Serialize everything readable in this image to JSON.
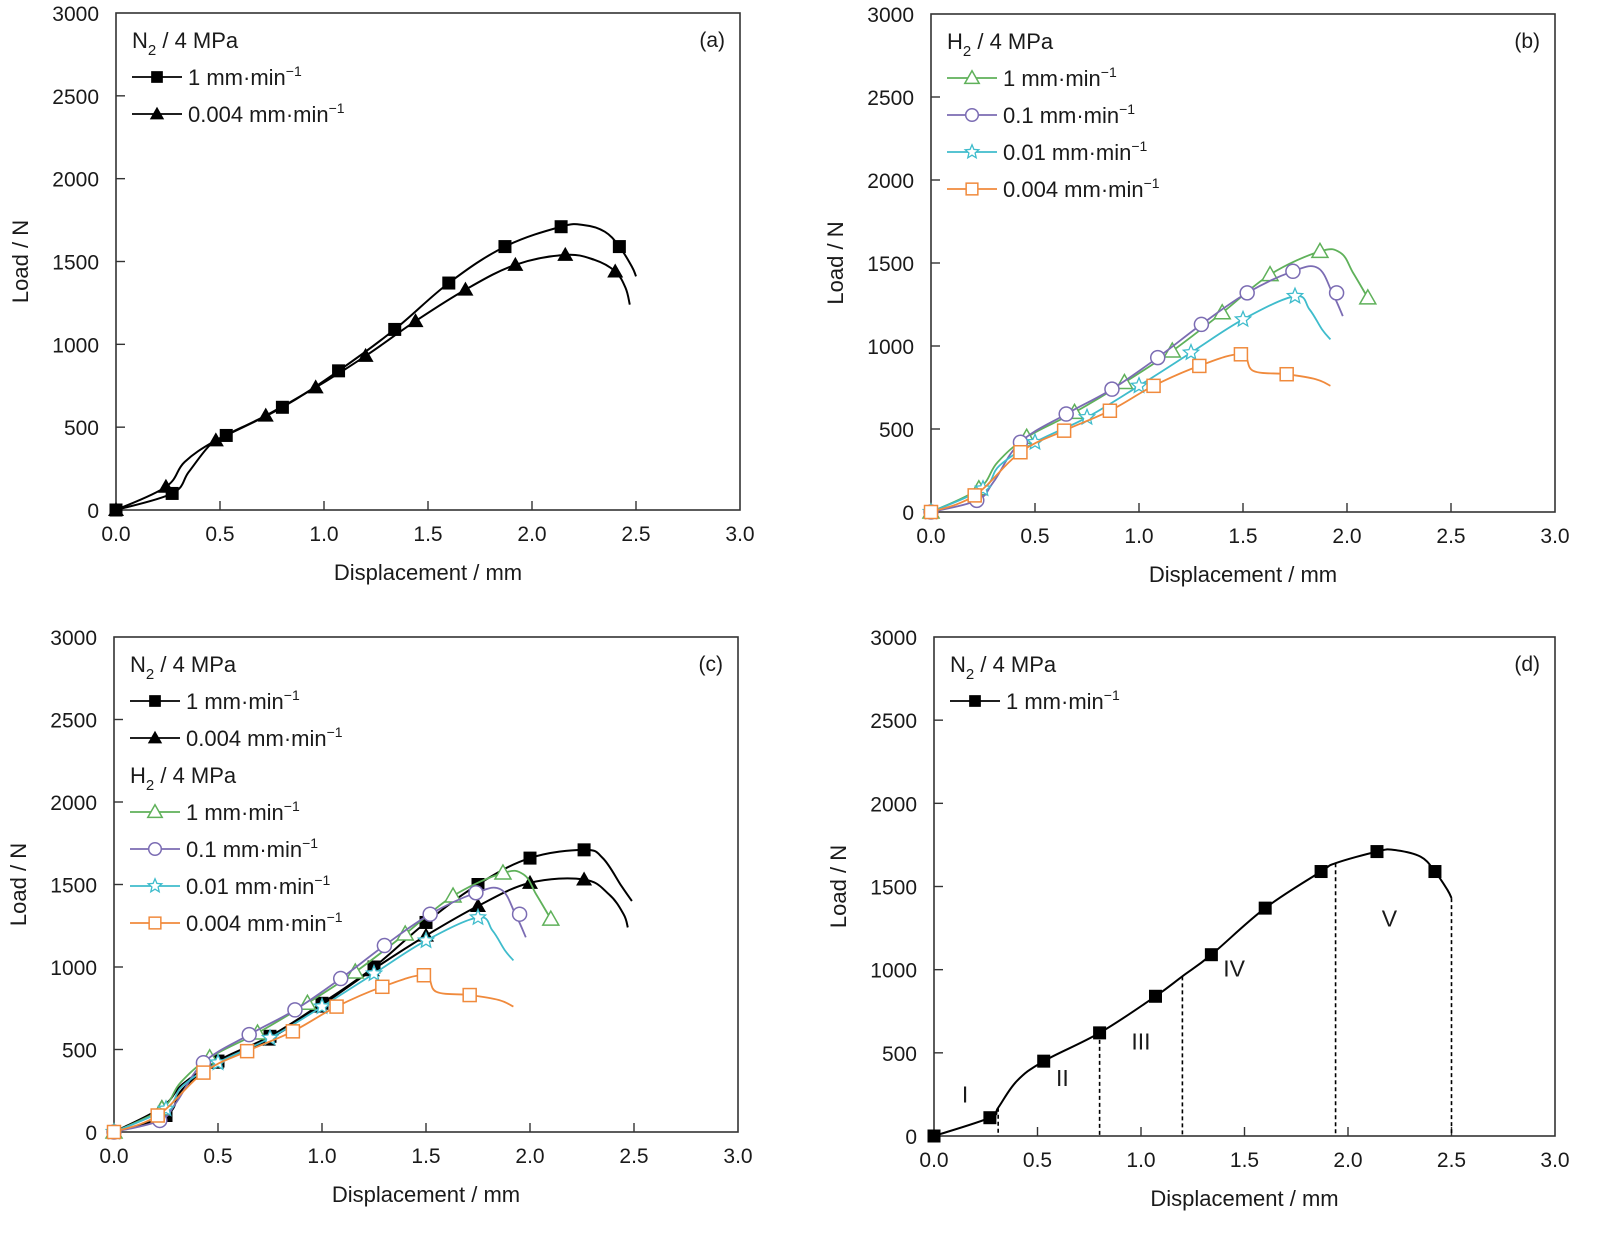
{
  "figure": {
    "panels": [
      "a",
      "b",
      "c",
      "d"
    ]
  },
  "chart_data": [
    {
      "id": "a",
      "type": "line",
      "panel_label": "(a)",
      "xlabel": "Displacement / mm",
      "ylabel": "Load / N",
      "xlim": [
        0,
        3.0
      ],
      "ylim": [
        0,
        3000
      ],
      "xticks": [
        "0.0",
        "0.5",
        "1.0",
        "1.5",
        "2.0",
        "2.5",
        "3.0"
      ],
      "yticks": [
        "0",
        "500",
        "1000",
        "1500",
        "2000",
        "2500",
        "3000"
      ],
      "grid": false,
      "legend_position": "top-left",
      "legend_groups": [
        {
          "title": "N",
          "sub": "2",
          "rest": " / 4 MPa",
          "series": [
            "n2_1",
            "n2_0004"
          ]
        }
      ],
      "series": [
        {
          "key": "n2_1",
          "name": "1 mm·min",
          "sup": "−1",
          "color": "#000000",
          "marker": "square-filled",
          "x": [
            0.0,
            0.27,
            0.35,
            0.45,
            0.53,
            0.8,
            1.07,
            1.34,
            1.6,
            1.87,
            2.14,
            2.25,
            2.35,
            2.42,
            2.48,
            2.5
          ],
          "y": [
            0,
            100,
            230,
            390,
            450,
            620,
            840,
            1090,
            1370,
            1590,
            1710,
            1720,
            1680,
            1590,
            1470,
            1410
          ],
          "markers_x": [
            0.0,
            0.27,
            0.53,
            0.8,
            1.07,
            1.34,
            1.6,
            1.87,
            2.14,
            2.42
          ],
          "markers_y": [
            0,
            100,
            450,
            620,
            840,
            1090,
            1370,
            1590,
            1710,
            1590
          ]
        },
        {
          "key": "n2_0004",
          "name": "0.004 mm·min",
          "sup": "−1",
          "color": "#000000",
          "marker": "triangle-filled",
          "x": [
            0.0,
            0.24,
            0.33,
            0.48,
            0.72,
            0.96,
            1.2,
            1.44,
            1.68,
            1.92,
            2.16,
            2.3,
            2.4,
            2.45,
            2.47
          ],
          "y": [
            0,
            140,
            290,
            420,
            570,
            740,
            930,
            1140,
            1330,
            1480,
            1540,
            1510,
            1440,
            1340,
            1240
          ],
          "markers_x": [
            0.0,
            0.24,
            0.48,
            0.72,
            0.96,
            1.2,
            1.44,
            1.68,
            1.92,
            2.16,
            2.4
          ],
          "markers_y": [
            0,
            140,
            420,
            570,
            740,
            930,
            1140,
            1330,
            1480,
            1540,
            1440
          ]
        }
      ],
      "regions": []
    },
    {
      "id": "b",
      "type": "line",
      "panel_label": "(b)",
      "xlabel": "Displacement / mm",
      "ylabel": "Load / N",
      "xlim": [
        0,
        3.0
      ],
      "ylim": [
        0,
        3000
      ],
      "xticks": [
        "0.0",
        "0.5",
        "1.0",
        "1.5",
        "2.0",
        "2.5",
        "3.0"
      ],
      "yticks": [
        "0",
        "500",
        "1000",
        "1500",
        "2000",
        "2500",
        "3000"
      ],
      "grid": false,
      "legend_position": "top-left",
      "legend_groups": [
        {
          "title": "H",
          "sub": "2",
          "rest": " / 4 MPa",
          "series": [
            "h2_1",
            "h2_01",
            "h2_001",
            "h2_0004"
          ]
        }
      ],
      "series": [
        {
          "key": "h2_1",
          "name": "1 mm·min",
          "sup": "−1",
          "color": "#5fb15a",
          "marker": "triangle-open",
          "x": [
            0.0,
            0.23,
            0.32,
            0.46,
            0.69,
            0.93,
            1.16,
            1.4,
            1.63,
            1.87,
            1.97,
            2.03,
            2.1
          ],
          "y": [
            0,
            140,
            300,
            450,
            600,
            780,
            970,
            1200,
            1430,
            1570,
            1560,
            1440,
            1290
          ],
          "markers_x": [
            0.0,
            0.23,
            0.46,
            0.69,
            0.93,
            1.16,
            1.4,
            1.63,
            1.87,
            2.1
          ],
          "markers_y": [
            0,
            140,
            450,
            600,
            780,
            970,
            1200,
            1430,
            1570,
            1290
          ]
        },
        {
          "key": "h2_01",
          "name": "0.1 mm·min",
          "sup": "−1",
          "color": "#7b6cb3",
          "marker": "circle-open",
          "x": [
            0.0,
            0.22,
            0.3,
            0.43,
            0.65,
            0.87,
            1.09,
            1.3,
            1.52,
            1.74,
            1.86,
            1.93,
            1.98
          ],
          "y": [
            0,
            70,
            180,
            420,
            590,
            740,
            930,
            1130,
            1320,
            1450,
            1470,
            1320,
            1180
          ],
          "markers_x": [
            0.0,
            0.22,
            0.43,
            0.65,
            0.87,
            1.09,
            1.3,
            1.52,
            1.74,
            1.95
          ],
          "markers_y": [
            0,
            70,
            420,
            590,
            740,
            930,
            1130,
            1320,
            1450,
            1320
          ]
        },
        {
          "key": "h2_001",
          "name": "0.01 mm·min",
          "sup": "−1",
          "color": "#3fbccc",
          "marker": "star-open",
          "x": [
            0.0,
            0.25,
            0.33,
            0.5,
            0.75,
            1.0,
            1.25,
            1.5,
            1.75,
            1.82,
            1.88,
            1.92
          ],
          "y": [
            0,
            140,
            280,
            420,
            570,
            760,
            960,
            1160,
            1300,
            1220,
            1100,
            1040
          ],
          "markers_x": [
            0.0,
            0.25,
            0.5,
            0.75,
            1.0,
            1.25,
            1.5,
            1.75
          ],
          "markers_y": [
            0,
            140,
            420,
            570,
            760,
            960,
            1160,
            1300
          ]
        },
        {
          "key": "h2_0004",
          "name": "0.004 mm·min",
          "sup": "−1",
          "color": "#f08a3c",
          "marker": "square-open",
          "x": [
            0.0,
            0.21,
            0.43,
            0.64,
            0.86,
            1.07,
            1.29,
            1.49,
            1.55,
            1.71,
            1.85,
            1.92
          ],
          "y": [
            0,
            100,
            360,
            490,
            610,
            760,
            880,
            950,
            850,
            830,
            800,
            760
          ],
          "markers_x": [
            0.0,
            0.21,
            0.43,
            0.64,
            0.86,
            1.07,
            1.29,
            1.49,
            1.71
          ],
          "markers_y": [
            0,
            100,
            360,
            490,
            610,
            760,
            880,
            950,
            830
          ]
        }
      ],
      "regions": []
    },
    {
      "id": "c",
      "type": "line",
      "panel_label": "(c)",
      "xlabel": "Displacement / mm",
      "ylabel": "Load / N",
      "xlim": [
        0,
        3.0
      ],
      "ylim": [
        0,
        3000
      ],
      "xticks": [
        "0.0",
        "0.5",
        "1.0",
        "1.5",
        "2.0",
        "2.5",
        "3.0"
      ],
      "yticks": [
        "0",
        "500",
        "1000",
        "1500",
        "2000",
        "2500",
        "3000"
      ],
      "grid": false,
      "legend_position": "top-left",
      "legend_groups": [
        {
          "title": "N",
          "sub": "2",
          "rest": " / 4 MPa",
          "series": [
            "n2_1",
            "n2_0004"
          ]
        },
        {
          "title": "H",
          "sub": "2",
          "rest": " / 4 MPa",
          "series": [
            "h2_1",
            "h2_01",
            "h2_001",
            "h2_0004"
          ]
        }
      ],
      "series": [
        {
          "key": "n2_1",
          "name": "1 mm·min",
          "sup": "−1",
          "color": "#000000",
          "marker": "square-filled",
          "x": [
            0.0,
            0.25,
            0.33,
            0.5,
            0.75,
            1.0,
            1.25,
            1.5,
            1.75,
            2.0,
            2.26,
            2.35,
            2.44,
            2.49
          ],
          "y": [
            0,
            100,
            260,
            430,
            580,
            780,
            1000,
            1270,
            1500,
            1660,
            1710,
            1660,
            1490,
            1400
          ],
          "markers_x": [
            0.0,
            0.25,
            0.5,
            0.75,
            1.0,
            1.25,
            1.5,
            1.75,
            2.0,
            2.26
          ],
          "markers_y": [
            0,
            100,
            430,
            580,
            780,
            1000,
            1270,
            1500,
            1660,
            1710
          ]
        },
        {
          "key": "n2_0004",
          "name": "0.004 mm·min",
          "sup": "−1",
          "color": "#000000",
          "marker": "triangle-filled",
          "x": [
            0.0,
            0.23,
            0.33,
            0.49,
            0.74,
            0.99,
            1.24,
            1.5,
            1.75,
            2.0,
            2.26,
            2.38,
            2.45,
            2.47
          ],
          "y": [
            0,
            150,
            290,
            420,
            560,
            760,
            980,
            1190,
            1370,
            1510,
            1530,
            1440,
            1320,
            1240
          ],
          "markers_x": [
            0.0,
            0.23,
            0.49,
            0.74,
            0.99,
            1.24,
            1.5,
            1.75,
            2.0,
            2.26
          ],
          "markers_y": [
            0,
            150,
            420,
            560,
            760,
            980,
            1190,
            1370,
            1510,
            1530
          ]
        },
        {
          "key": "h2_1",
          "name": "1 mm·min",
          "sup": "−1",
          "color": "#5fb15a",
          "marker": "triangle-open",
          "x": [
            0.0,
            0.23,
            0.32,
            0.46,
            0.69,
            0.93,
            1.16,
            1.4,
            1.63,
            1.87,
            1.97,
            2.03,
            2.1
          ],
          "y": [
            0,
            140,
            300,
            450,
            600,
            780,
            970,
            1200,
            1430,
            1570,
            1560,
            1440,
            1290
          ],
          "markers_x": [
            0.0,
            0.23,
            0.46,
            0.69,
            0.93,
            1.16,
            1.4,
            1.63,
            1.87,
            2.1
          ],
          "markers_y": [
            0,
            140,
            450,
            600,
            780,
            970,
            1200,
            1430,
            1570,
            1290
          ]
        },
        {
          "key": "h2_01",
          "name": "0.1 mm·min",
          "sup": "−1",
          "color": "#7b6cb3",
          "marker": "circle-open",
          "x": [
            0.0,
            0.22,
            0.3,
            0.43,
            0.65,
            0.87,
            1.09,
            1.3,
            1.52,
            1.74,
            1.86,
            1.93,
            1.98
          ],
          "y": [
            0,
            70,
            180,
            420,
            590,
            740,
            930,
            1130,
            1320,
            1450,
            1470,
            1320,
            1180
          ],
          "markers_x": [
            0.0,
            0.22,
            0.43,
            0.65,
            0.87,
            1.09,
            1.3,
            1.52,
            1.74,
            1.95
          ],
          "markers_y": [
            0,
            70,
            420,
            590,
            740,
            930,
            1130,
            1320,
            1450,
            1320
          ]
        },
        {
          "key": "h2_001",
          "name": "0.01 mm·min",
          "sup": "−1",
          "color": "#3fbccc",
          "marker": "star-open",
          "x": [
            0.0,
            0.25,
            0.33,
            0.5,
            0.75,
            1.0,
            1.25,
            1.5,
            1.75,
            1.82,
            1.88,
            1.92
          ],
          "y": [
            0,
            140,
            280,
            420,
            570,
            760,
            960,
            1160,
            1300,
            1220,
            1100,
            1040
          ],
          "markers_x": [
            0.0,
            0.25,
            0.5,
            0.75,
            1.0,
            1.25,
            1.5,
            1.75
          ],
          "markers_y": [
            0,
            140,
            420,
            570,
            760,
            960,
            1160,
            1300
          ]
        },
        {
          "key": "h2_0004",
          "name": "0.004 mm·min",
          "sup": "−1",
          "color": "#f08a3c",
          "marker": "square-open",
          "x": [
            0.0,
            0.21,
            0.43,
            0.64,
            0.86,
            1.07,
            1.29,
            1.49,
            1.55,
            1.71,
            1.85,
            1.92
          ],
          "y": [
            0,
            100,
            360,
            490,
            610,
            760,
            880,
            950,
            850,
            830,
            800,
            760
          ],
          "markers_x": [
            0.0,
            0.21,
            0.43,
            0.64,
            0.86,
            1.07,
            1.29,
            1.49,
            1.71
          ],
          "markers_y": [
            0,
            100,
            360,
            490,
            610,
            760,
            880,
            950,
            830
          ]
        }
      ],
      "regions": []
    },
    {
      "id": "d",
      "type": "line",
      "panel_label": "(d)",
      "xlabel": "Displacement / mm",
      "ylabel": "Load / N",
      "xlim": [
        0,
        3.0
      ],
      "ylim": [
        0,
        3000
      ],
      "xticks": [
        "0.0",
        "0.5",
        "1.0",
        "1.5",
        "2.0",
        "2.5",
        "3.0"
      ],
      "yticks": [
        "0",
        "500",
        "1000",
        "1500",
        "2000",
        "2500",
        "3000"
      ],
      "grid": false,
      "legend_position": "top-left",
      "legend_groups": [
        {
          "title": "N",
          "sub": "2",
          "rest": " / 4 MPa",
          "series": [
            "n2_1"
          ]
        }
      ],
      "series": [
        {
          "key": "n2_1",
          "name": "1 mm·min",
          "sup": "−1",
          "color": "#000000",
          "marker": "square-filled",
          "x": [
            0.0,
            0.27,
            0.31,
            0.4,
            0.53,
            0.8,
            1.07,
            1.2,
            1.34,
            1.6,
            1.87,
            1.94,
            2.14,
            2.22,
            2.35,
            2.42,
            2.48,
            2.5
          ],
          "y": [
            0,
            110,
            170,
            330,
            450,
            620,
            840,
            960,
            1090,
            1370,
            1590,
            1640,
            1710,
            1720,
            1680,
            1590,
            1480,
            1430
          ],
          "markers_x": [
            0.0,
            0.27,
            0.53,
            0.8,
            1.07,
            1.34,
            1.6,
            1.87,
            2.14,
            2.42
          ],
          "markers_y": [
            0,
            110,
            450,
            620,
            840,
            1090,
            1370,
            1590,
            1710,
            1590
          ]
        }
      ],
      "regions": [
        {
          "label": "I",
          "x": 0.15,
          "y": 200
        },
        {
          "label": "II",
          "x": 0.62,
          "y": 300
        },
        {
          "label": "III",
          "x": 1.0,
          "y": 520
        },
        {
          "label": "IV",
          "x": 1.45,
          "y": 960
        },
        {
          "label": "V",
          "x": 2.2,
          "y": 1260
        }
      ],
      "boundaries": [
        {
          "x": 0.31,
          "y": 170
        },
        {
          "x": 0.8,
          "y": 620
        },
        {
          "x": 1.2,
          "y": 960
        },
        {
          "x": 1.94,
          "y": 1640
        },
        {
          "x": 2.5,
          "y": 1430
        }
      ]
    }
  ]
}
